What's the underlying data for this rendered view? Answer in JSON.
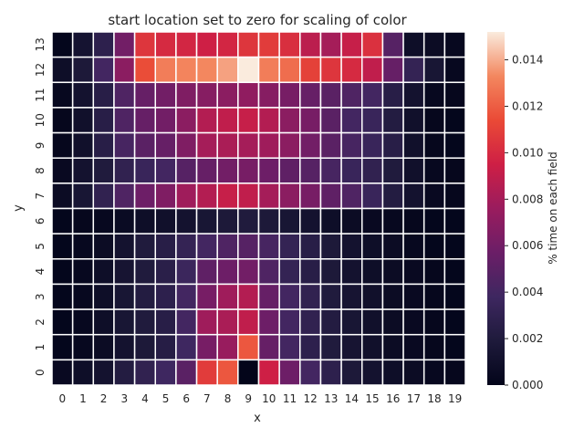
{
  "chart_data": {
    "type": "heatmap",
    "title": "start location set to zero for scaling of color",
    "xlabel": "x",
    "ylabel": "y",
    "x_ticks": [
      0,
      1,
      2,
      3,
      4,
      5,
      6,
      7,
      8,
      9,
      10,
      11,
      12,
      13,
      14,
      15,
      16,
      17,
      18,
      19
    ],
    "y_ticks": [
      13,
      12,
      11,
      10,
      9,
      8,
      7,
      6,
      5,
      4,
      3,
      2,
      1,
      0
    ],
    "colorbar": {
      "label": "% time on each field",
      "range": [
        0,
        0.0152
      ],
      "ticks": [
        "0.000",
        "0.002",
        "0.004",
        "0.006",
        "0.008",
        "0.010",
        "0.012",
        "0.014"
      ]
    },
    "grid": true,
    "values": [
      [
        0.0001,
        0.0013,
        0.0028,
        0.006,
        0.0105,
        0.01,
        0.0098,
        0.0095,
        0.0098,
        0.0105,
        0.0108,
        0.0102,
        0.0088,
        0.008,
        0.0092,
        0.0103,
        0.0048,
        0.0008,
        0.0006,
        0.0003
      ],
      [
        0.0008,
        0.0018,
        0.004,
        0.007,
        0.0115,
        0.013,
        0.0132,
        0.0133,
        0.0138,
        0.0152,
        0.013,
        0.0125,
        0.011,
        0.0105,
        0.01,
        0.009,
        0.0055,
        0.0032,
        0.0015,
        0.0003
      ],
      [
        0.0003,
        0.0012,
        0.0025,
        0.0045,
        0.0055,
        0.006,
        0.0065,
        0.0068,
        0.007,
        0.0072,
        0.0068,
        0.0062,
        0.0055,
        0.005,
        0.0045,
        0.004,
        0.0025,
        0.0012,
        0.0003,
        0.0002
      ],
      [
        0.0002,
        0.001,
        0.0025,
        0.0045,
        0.0055,
        0.006,
        0.007,
        0.0085,
        0.009,
        0.0092,
        0.0085,
        0.007,
        0.0062,
        0.005,
        0.004,
        0.0035,
        0.0022,
        0.001,
        0.0002,
        0.0001
      ],
      [
        0.0002,
        0.001,
        0.0025,
        0.0042,
        0.005,
        0.0055,
        0.0065,
        0.008,
        0.0082,
        0.008,
        0.0078,
        0.007,
        0.006,
        0.005,
        0.0042,
        0.0035,
        0.0025,
        0.001,
        0.0002,
        0.0001
      ],
      [
        0.0004,
        0.0012,
        0.002,
        0.003,
        0.0035,
        0.004,
        0.0048,
        0.0055,
        0.006,
        0.0062,
        0.0058,
        0.0052,
        0.0048,
        0.0042,
        0.0035,
        0.003,
        0.002,
        0.001,
        0.0003,
        0.0002
      ],
      [
        0.0006,
        0.0015,
        0.003,
        0.0045,
        0.0058,
        0.0065,
        0.0078,
        0.0085,
        0.0092,
        0.009,
        0.008,
        0.007,
        0.0062,
        0.0052,
        0.0045,
        0.0035,
        0.0022,
        0.0012,
        0.0004,
        0.0002
      ],
      [
        0.0001,
        0.0002,
        0.0003,
        0.0005,
        0.0008,
        0.001,
        0.0012,
        0.0015,
        0.0018,
        0.002,
        0.0018,
        0.0015,
        0.0012,
        0.0008,
        0.0006,
        0.0004,
        0.0003,
        0.0002,
        0.0001,
        0.0001
      ],
      [
        0.0001,
        0.0003,
        0.0006,
        0.0012,
        0.002,
        0.0025,
        0.0032,
        0.004,
        0.0045,
        0.0048,
        0.0042,
        0.0032,
        0.0025,
        0.0018,
        0.0012,
        0.0008,
        0.0006,
        0.0003,
        0.0001,
        0.0001
      ],
      [
        0.0001,
        0.0003,
        0.0008,
        0.0014,
        0.002,
        0.0026,
        0.0036,
        0.0052,
        0.0058,
        0.006,
        0.0045,
        0.0032,
        0.0025,
        0.0018,
        0.0012,
        0.0008,
        0.0006,
        0.0004,
        0.0002,
        0.0001
      ],
      [
        0.0001,
        0.0003,
        0.0008,
        0.0015,
        0.0022,
        0.0028,
        0.004,
        0.0062,
        0.0078,
        0.0085,
        0.0055,
        0.004,
        0.003,
        0.002,
        0.0014,
        0.001,
        0.0006,
        0.0004,
        0.0002,
        0.0001
      ],
      [
        0.0001,
        0.0003,
        0.0008,
        0.0015,
        0.002,
        0.0025,
        0.004,
        0.0078,
        0.0082,
        0.009,
        0.0058,
        0.004,
        0.003,
        0.0022,
        0.0015,
        0.001,
        0.0006,
        0.0004,
        0.0002,
        0.0001
      ],
      [
        0.0001,
        0.0003,
        0.0006,
        0.0012,
        0.0018,
        0.0024,
        0.0038,
        0.0062,
        0.0075,
        0.0118,
        0.0055,
        0.004,
        0.0028,
        0.002,
        0.0014,
        0.001,
        0.0006,
        0.0004,
        0.0002,
        0.0001
      ],
      [
        0.0004,
        0.0008,
        0.0012,
        0.0022,
        0.003,
        0.0038,
        0.005,
        0.0108,
        0.0118,
        0.0,
        0.0095,
        0.0058,
        0.004,
        0.0028,
        0.0018,
        0.0012,
        0.0008,
        0.0006,
        0.0003,
        0.0002
      ]
    ]
  }
}
